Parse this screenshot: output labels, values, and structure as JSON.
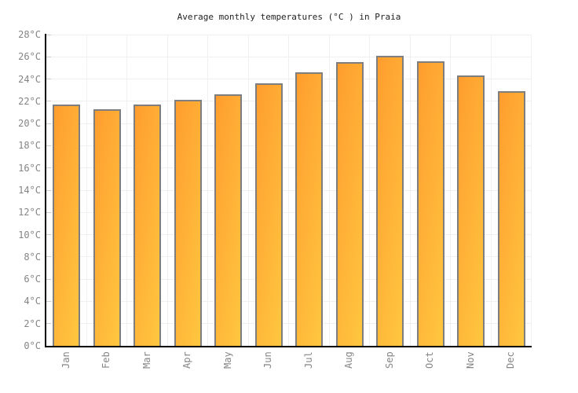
{
  "chart_data": {
    "type": "bar",
    "title": "Average monthly temperatures (°C ) in Praia",
    "categories": [
      "Jan",
      "Feb",
      "Mar",
      "Apr",
      "May",
      "Jun",
      "Jul",
      "Aug",
      "Sep",
      "Oct",
      "Nov",
      "Dec"
    ],
    "values": [
      21.7,
      21.3,
      21.7,
      22.1,
      22.6,
      23.6,
      24.6,
      25.5,
      26.1,
      25.6,
      24.3,
      22.9
    ],
    "unit": "°C",
    "ylim": [
      0,
      28
    ],
    "ytick_step": 2,
    "ytick_label_suffix": "°C",
    "grid": "horizontal and vertical, light gray",
    "legend": "none",
    "colors": {
      "bar_gradient_start": "#ff9d2e",
      "bar_gradient_end": "#ffc740",
      "bar_border": "#7e7e7e",
      "axis": "#000000",
      "gridline": "#f0f0f0",
      "tick": "#cccccc",
      "axis_label": "#858585",
      "title": "#222222",
      "background": "#ffffff"
    }
  }
}
